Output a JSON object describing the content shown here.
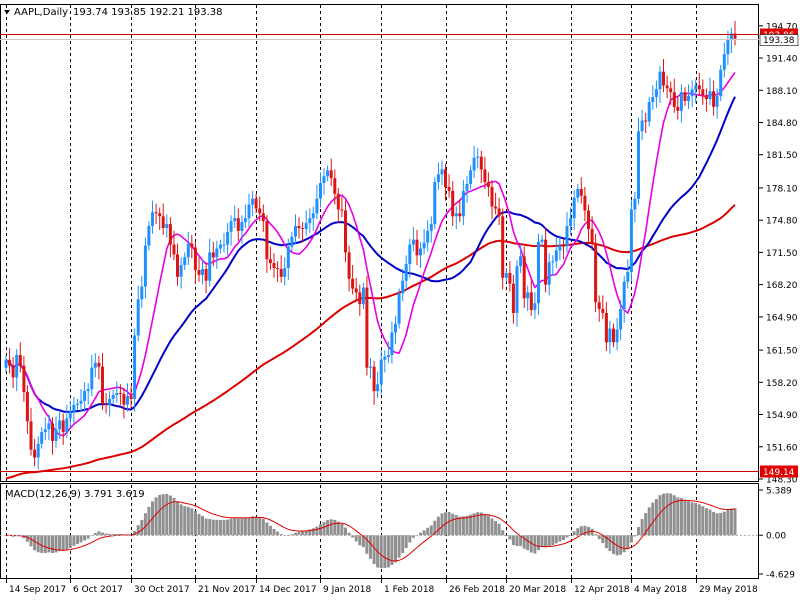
{
  "header": {
    "collapse_icon": "triangle-down-icon",
    "symbol": "AAPL,Daily",
    "ohlc": "193.74 193.85 192.21 193.38"
  },
  "macd_header": "MACD(12,26,9) 3.791 3.619",
  "colors": {
    "up": "#1e90ff",
    "down": "#dc1414",
    "ma_fast": "#e600e6",
    "ma_mid": "#0000c8",
    "ma_slow": "#dc0000",
    "hline": "#d00000",
    "tag_bg": "#e00000",
    "macd_hist": "#909090",
    "macd_signal": "#e00000"
  },
  "chart_data": [
    {
      "type": "candlestick",
      "title": "AAPL,Daily",
      "ylim": [
        148.3,
        195.6
      ],
      "y_ticks": [
        "194.70",
        "191.40",
        "188.10",
        "184.80",
        "181.50",
        "178.10",
        "174.80",
        "171.50",
        "168.20",
        "164.90",
        "161.50",
        "158.20",
        "154.90",
        "151.60",
        "148.30"
      ],
      "x_labels": [
        "14 Sep 2017",
        "6 Oct 2017",
        "30 Oct 2017",
        "21 Nov 2017",
        "14 Dec 2017",
        "9 Jan 2018",
        "1 Feb 2018",
        "26 Feb 2018",
        "20 Mar 2018",
        "12 Apr 2018",
        "4 May 2018",
        "29 May 2018"
      ],
      "price_tags": [
        {
          "value": 193.86,
          "label": "193.86"
        },
        {
          "value": 149.14,
          "label": "149.14"
        }
      ],
      "current_price_box": "193.38",
      "closes": [
        160.5,
        159.9,
        158.7,
        161.0,
        159.9,
        157.2,
        154.2,
        151.3,
        150.5,
        151.9,
        153.1,
        153.4,
        154.0,
        152.2,
        153.4,
        154.3,
        153.1,
        154.5,
        155.2,
        155.9,
        156.0,
        156.3,
        157.3,
        157.5,
        159.7,
        160.2,
        159.8,
        156.0,
        155.9,
        156.5,
        156.9,
        157.1,
        157.0,
        155.9,
        156.8,
        156.5,
        163.0,
        166.7,
        168.0,
        172.2,
        174.2,
        175.6,
        175.5,
        175.2,
        174.0,
        174.4,
        172.3,
        171.3,
        169.0,
        170.2,
        171.0,
        172.4,
        172.0,
        169.7,
        169.2,
        169.8,
        168.6,
        171.5,
        171.0,
        171.9,
        172.3,
        172.3,
        173.6,
        174.7,
        175.0,
        173.7,
        174.6,
        175.0,
        176.4,
        177.0,
        176.0,
        175.5,
        174.7,
        170.8,
        170.4,
        169.9,
        169.8,
        169.0,
        169.9,
        172.1,
        173.1,
        174.2,
        174.0,
        173.9,
        174.5,
        175.0,
        175.5,
        177.0,
        178.6,
        179.3,
        179.9,
        179.1,
        177.5,
        175.9,
        175.8,
        171.5,
        168.8,
        167.8,
        167.4,
        166.2,
        167.9,
        159.7,
        159.8,
        157.3,
        158.0,
        160.5,
        160.8,
        161.0,
        163.3,
        164.2,
        167.3,
        168.6,
        170.3,
        172.3,
        172.8,
        171.2,
        171.9,
        172.5,
        173.7,
        174.4,
        178.7,
        179.5,
        180.0,
        178.2,
        177.8,
        175.2,
        175.5,
        175.2,
        177.8,
        178.5,
        179.9,
        181.2,
        181.3,
        180.0,
        178.7,
        178.2,
        176.2,
        176.0,
        175.2,
        168.9,
        169.4,
        168.3,
        165.3,
        170.1,
        171.1,
        166.8,
        167.4,
        165.6,
        166.3,
        172.6,
        172.8,
        168.2,
        170.5,
        170.6,
        171.7,
        172.2,
        172.1,
        174.2,
        175.0,
        177.1,
        178.0,
        177.3,
        175.8,
        173.9,
        172.4,
        166.4,
        165.7,
        165.3,
        162.3,
        163.7,
        162.3,
        163.6,
        165.7,
        168.5,
        169.5,
        175.9,
        177.0,
        183.9,
        185.0,
        184.9,
        186.9,
        187.4,
        188.2,
        190.0,
        188.6,
        188.3,
        187.9,
        186.4,
        186.0,
        187.9,
        187.0,
        187.5,
        188.2,
        188.6,
        188.2,
        187.6,
        187.2,
        188.0,
        186.4,
        187.5,
        190.2,
        191.8,
        193.3,
        193.9,
        193.38
      ]
    },
    {
      "type": "bar",
      "title": "MACD(12,26,9)",
      "y_ticks": [
        "5.389",
        "0.00",
        "-4.629"
      ],
      "ylim": [
        -4.629,
        5.389
      ]
    }
  ]
}
